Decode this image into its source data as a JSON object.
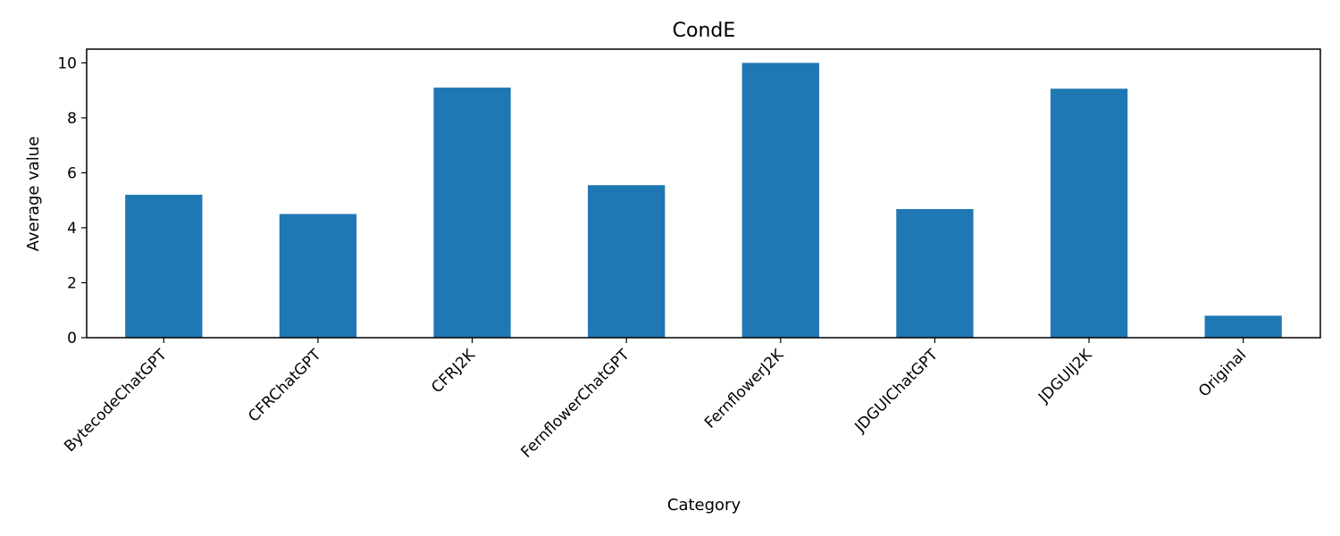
{
  "chart_data": {
    "type": "bar",
    "title": "CondE",
    "xlabel": "Category",
    "ylabel": "Average value",
    "categories": [
      "BytecodeChatGPT",
      "CFRChatGPT",
      "CFRJ2K",
      "FernflowerChatGPT",
      "FernflowerJ2K",
      "JDGUIChatGPT",
      "JDGUIJ2K",
      "Original"
    ],
    "values": [
      5.2,
      4.5,
      9.1,
      5.55,
      10.0,
      4.68,
      9.06,
      0.8
    ],
    "ylim": [
      0,
      10.5
    ],
    "yticks": [
      0,
      2,
      4,
      6,
      8,
      10
    ],
    "grid": false,
    "legend": "none",
    "colors": {
      "bar": "#1f77b4",
      "axis": "#000000"
    }
  }
}
